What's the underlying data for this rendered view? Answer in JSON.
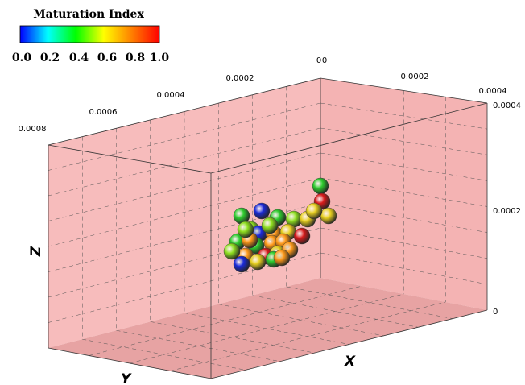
{
  "colorbar": {
    "title": "Maturation Index",
    "ticks": [
      "0.0",
      "0.2",
      "0.4",
      "0.6",
      "0.8",
      "1.0"
    ]
  },
  "axes": {
    "x_label": "X",
    "y_label": "Y",
    "z_label": "Z",
    "y_ticks": [
      "0.0008",
      "0.0006",
      "0.0004",
      "0.0002",
      "0"
    ],
    "x_ticks": [
      "0",
      "0.0002",
      "0.0004"
    ],
    "z_ticks": [
      "0.0004",
      "0.0002",
      "0"
    ]
  }
}
